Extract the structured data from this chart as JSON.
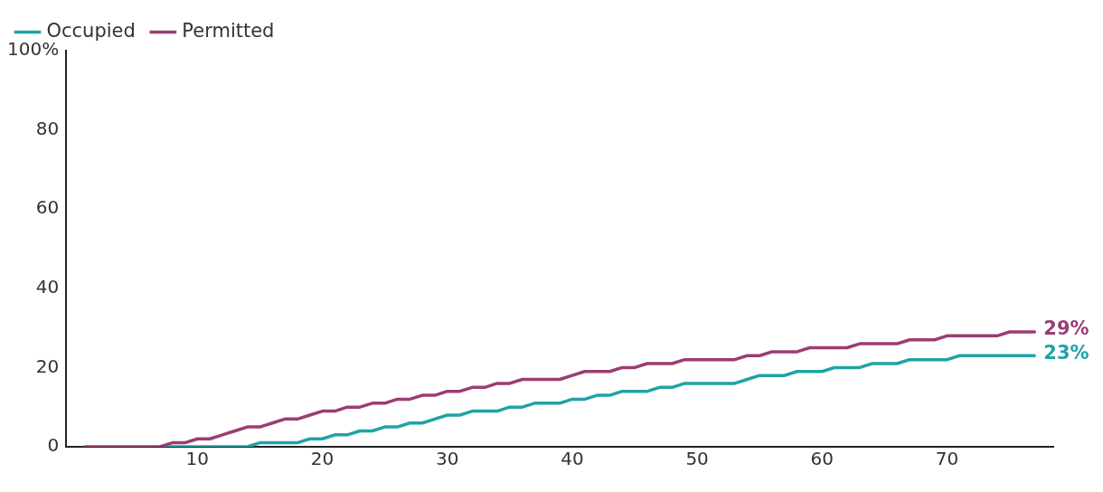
{
  "chart_data": {
    "type": "line",
    "x": [
      1,
      2,
      3,
      4,
      5,
      6,
      7,
      8,
      9,
      10,
      11,
      12,
      13,
      14,
      15,
      16,
      17,
      18,
      19,
      20,
      21,
      22,
      23,
      24,
      25,
      26,
      27,
      28,
      29,
      30,
      31,
      32,
      33,
      34,
      35,
      36,
      37,
      38,
      39,
      40,
      41,
      42,
      43,
      44,
      45,
      46,
      47,
      48,
      49,
      50,
      51,
      52,
      53,
      54,
      55,
      56,
      57,
      58,
      59,
      60,
      61,
      62,
      63,
      64,
      65,
      66,
      67,
      68,
      69,
      70,
      71,
      72,
      73,
      74,
      75,
      76,
      77
    ],
    "series": [
      {
        "name": "Occupied",
        "color": "#1fa3a6",
        "values": [
          null,
          null,
          null,
          null,
          null,
          null,
          0,
          0,
          0,
          0,
          0,
          0,
          0,
          0,
          1,
          1,
          1,
          1,
          2,
          2,
          3,
          3,
          4,
          4,
          5,
          5,
          6,
          6,
          7,
          8,
          8,
          9,
          9,
          9,
          10,
          10,
          11,
          11,
          11,
          12,
          12,
          13,
          13,
          14,
          14,
          14,
          15,
          15,
          16,
          16,
          16,
          16,
          16,
          17,
          18,
          18,
          18,
          19,
          19,
          19,
          20,
          20,
          20,
          21,
          21,
          21,
          22,
          22,
          22,
          22,
          23,
          23,
          23,
          23,
          23,
          23,
          23
        ]
      },
      {
        "name": "Permitted",
        "color": "#9b3d73",
        "values": [
          0,
          0,
          0,
          0,
          0,
          0,
          0,
          1,
          1,
          2,
          2,
          3,
          4,
          5,
          5,
          6,
          7,
          7,
          8,
          9,
          9,
          10,
          10,
          11,
          11,
          12,
          12,
          13,
          13,
          14,
          14,
          15,
          15,
          16,
          16,
          17,
          17,
          17,
          17,
          18,
          19,
          19,
          19,
          20,
          20,
          21,
          21,
          21,
          22,
          22,
          22,
          22,
          22,
          23,
          23,
          24,
          24,
          24,
          25,
          25,
          25,
          25,
          26,
          26,
          26,
          26,
          27,
          27,
          27,
          28,
          28,
          28,
          28,
          28,
          29,
          29,
          29
        ]
      }
    ],
    "xlim": [
      -0.5,
      78.5
    ],
    "xticks": [
      10,
      20,
      30,
      40,
      50,
      60,
      70
    ],
    "ylim": [
      0,
      100
    ],
    "yticks": [
      0,
      20,
      40,
      60,
      80,
      {
        "value": 100,
        "label": "100%"
      }
    ],
    "grid": false,
    "legend": "top left",
    "marker": "none",
    "line_style": "solid",
    "annotations": [
      {
        "text": "29%",
        "x": 77,
        "y": 29
      },
      {
        "text": "23%",
        "x": 77,
        "y": 23
      }
    ]
  }
}
